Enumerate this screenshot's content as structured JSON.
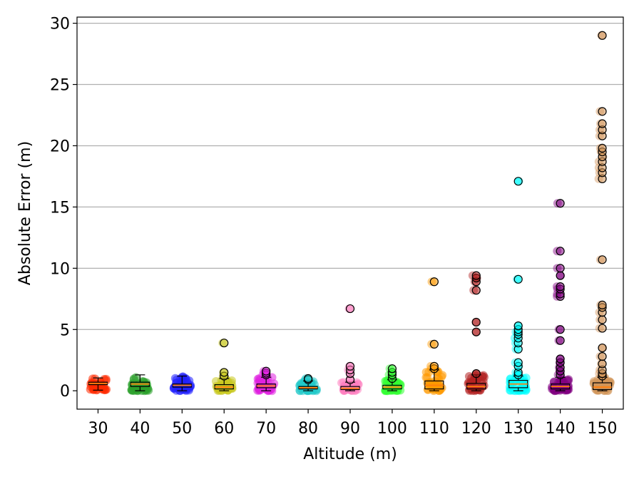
{
  "chart_data": {
    "type": "box",
    "xlabel": "Altitude (m)",
    "ylabel": "Absolute Error (m)",
    "categories": [
      "30",
      "40",
      "50",
      "60",
      "70",
      "80",
      "90",
      "100",
      "110",
      "120",
      "130",
      "140",
      "150"
    ],
    "ylim": [
      -1.5,
      30.5
    ],
    "yticks": [
      0,
      5,
      10,
      15,
      20,
      25,
      30
    ],
    "ytick_labels": [
      "0",
      "5",
      "10",
      "15",
      "20",
      "25",
      "30"
    ],
    "grid": "horizontal",
    "colors": [
      "#ff2a00",
      "#2ca02c",
      "#1f1fff",
      "#c8c820",
      "#e020e0",
      "#20c8c8",
      "#ff80c0",
      "#33ff33",
      "#ff9900",
      "#b22222",
      "#00ffff",
      "#800080",
      "#d2955a"
    ],
    "boxes": [
      {
        "category": "30",
        "q1": 0.5,
        "median": 0.6,
        "q3": 0.7,
        "whisker_low": 0.05,
        "whisker_high": 1.05,
        "fliers": []
      },
      {
        "category": "40",
        "q1": 0.35,
        "median": 0.55,
        "q3": 0.7,
        "whisker_low": 0.0,
        "whisker_high": 1.3,
        "fliers": []
      },
      {
        "category": "50",
        "q1": 0.3,
        "median": 0.45,
        "q3": 0.55,
        "whisker_low": 0.0,
        "whisker_high": 1.2,
        "fliers": []
      },
      {
        "category": "60",
        "q1": 0.15,
        "median": 0.3,
        "q3": 0.5,
        "whisker_low": 0.0,
        "whisker_high": 1.0,
        "fliers": [
          1.2,
          1.5,
          3.9
        ]
      },
      {
        "category": "70",
        "q1": 0.25,
        "median": 0.4,
        "q3": 0.55,
        "whisker_low": 0.0,
        "whisker_high": 1.1,
        "fliers": [
          1.3,
          1.45,
          1.6
        ]
      },
      {
        "category": "80",
        "q1": 0.15,
        "median": 0.25,
        "q3": 0.35,
        "whisker_low": 0.0,
        "whisker_high": 0.8,
        "fliers": [
          0.9,
          1.0
        ]
      },
      {
        "category": "90",
        "q1": 0.1,
        "median": 0.2,
        "q3": 0.35,
        "whisker_low": 0.0,
        "whisker_high": 0.7,
        "fliers": [
          0.9,
          1.4,
          1.7,
          2.0,
          6.7
        ]
      },
      {
        "category": "100",
        "q1": 0.15,
        "median": 0.3,
        "q3": 0.45,
        "whisker_low": 0.0,
        "whisker_high": 0.9,
        "fliers": [
          1.0,
          1.3,
          1.5,
          1.8
        ]
      },
      {
        "category": "110",
        "q1": 0.15,
        "median": 0.45,
        "q3": 0.8,
        "whisker_low": 0.0,
        "whisker_high": 1.7,
        "fliers": [
          1.8,
          2.0,
          3.8,
          8.9
        ]
      },
      {
        "category": "120",
        "q1": 0.15,
        "median": 0.35,
        "q3": 0.6,
        "whisker_low": 0.0,
        "whisker_high": 1.3,
        "fliers": [
          1.4,
          4.8,
          5.6,
          8.2,
          8.9,
          9.2,
          9.4
        ]
      },
      {
        "category": "130",
        "q1": 0.25,
        "median": 0.55,
        "q3": 0.85,
        "whisker_low": 0.0,
        "whisker_high": 1.2,
        "fliers": [
          1.3,
          1.5,
          2.0,
          2.3,
          3.4,
          3.9,
          4.3,
          4.6,
          4.8,
          5.0,
          5.3,
          9.1,
          17.1
        ]
      },
      {
        "category": "140",
        "q1": 0.15,
        "median": 0.35,
        "q3": 0.55,
        "whisker_low": 0.0,
        "whisker_high": 1.1,
        "fliers": [
          1.3,
          1.6,
          1.9,
          2.3,
          2.6,
          4.1,
          5.0,
          7.7,
          7.9,
          8.3,
          8.5,
          9.4,
          10.0,
          11.4,
          15.3
        ]
      },
      {
        "category": "150",
        "q1": 0.1,
        "median": 0.3,
        "q3": 0.65,
        "whisker_low": 0.0,
        "whisker_high": 1.1,
        "fliers": [
          1.2,
          1.4,
          1.7,
          2.2,
          2.8,
          3.5,
          5.1,
          5.8,
          6.4,
          6.8,
          7.0,
          10.7,
          17.3,
          17.8,
          18.2,
          18.7,
          19.1,
          19.5,
          19.8,
          20.8,
          21.3,
          21.8,
          22.8,
          29.0
        ]
      }
    ]
  }
}
